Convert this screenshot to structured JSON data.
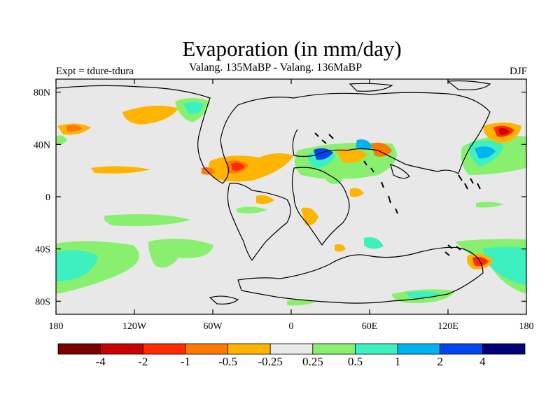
{
  "header": {
    "title": "Evaporation (in mm/day)",
    "subtitle": "Valang.  135MaBP - Valang.  136MaBP",
    "left_label": "Expt = tdure-tdura",
    "right_label": "DJF"
  },
  "map": {
    "lon_ticks": [
      {
        "value": -180,
        "label": "180"
      },
      {
        "value": -120,
        "label": "120W"
      },
      {
        "value": -60,
        "label": "60W"
      },
      {
        "value": 0,
        "label": "0"
      },
      {
        "value": 60,
        "label": "60E"
      },
      {
        "value": 120,
        "label": "120E"
      },
      {
        "value": 180,
        "label": "180"
      }
    ],
    "lat_ticks": [
      {
        "value": 80,
        "label": "80N"
      },
      {
        "value": 40,
        "label": "40N"
      },
      {
        "value": 0,
        "label": "0"
      },
      {
        "value": -40,
        "label": "40S"
      },
      {
        "value": -80,
        "label": "80S"
      }
    ],
    "lon_range": [
      -180,
      180
    ],
    "lat_range": [
      -90,
      90
    ],
    "background_color": "#e8e8e8"
  },
  "colorbar": {
    "colors": [
      "#7a0000",
      "#cc0000",
      "#ff2a00",
      "#ff7800",
      "#ffb400",
      "#e8e8e8",
      "#88f06e",
      "#3cf0c0",
      "#00b4f0",
      "#0046f0",
      "#000078"
    ],
    "labels": [
      "-4",
      "-2",
      "-1",
      "-0.5",
      "-0.25",
      "0.25",
      "0.5",
      "1",
      "2",
      "4"
    ]
  }
}
